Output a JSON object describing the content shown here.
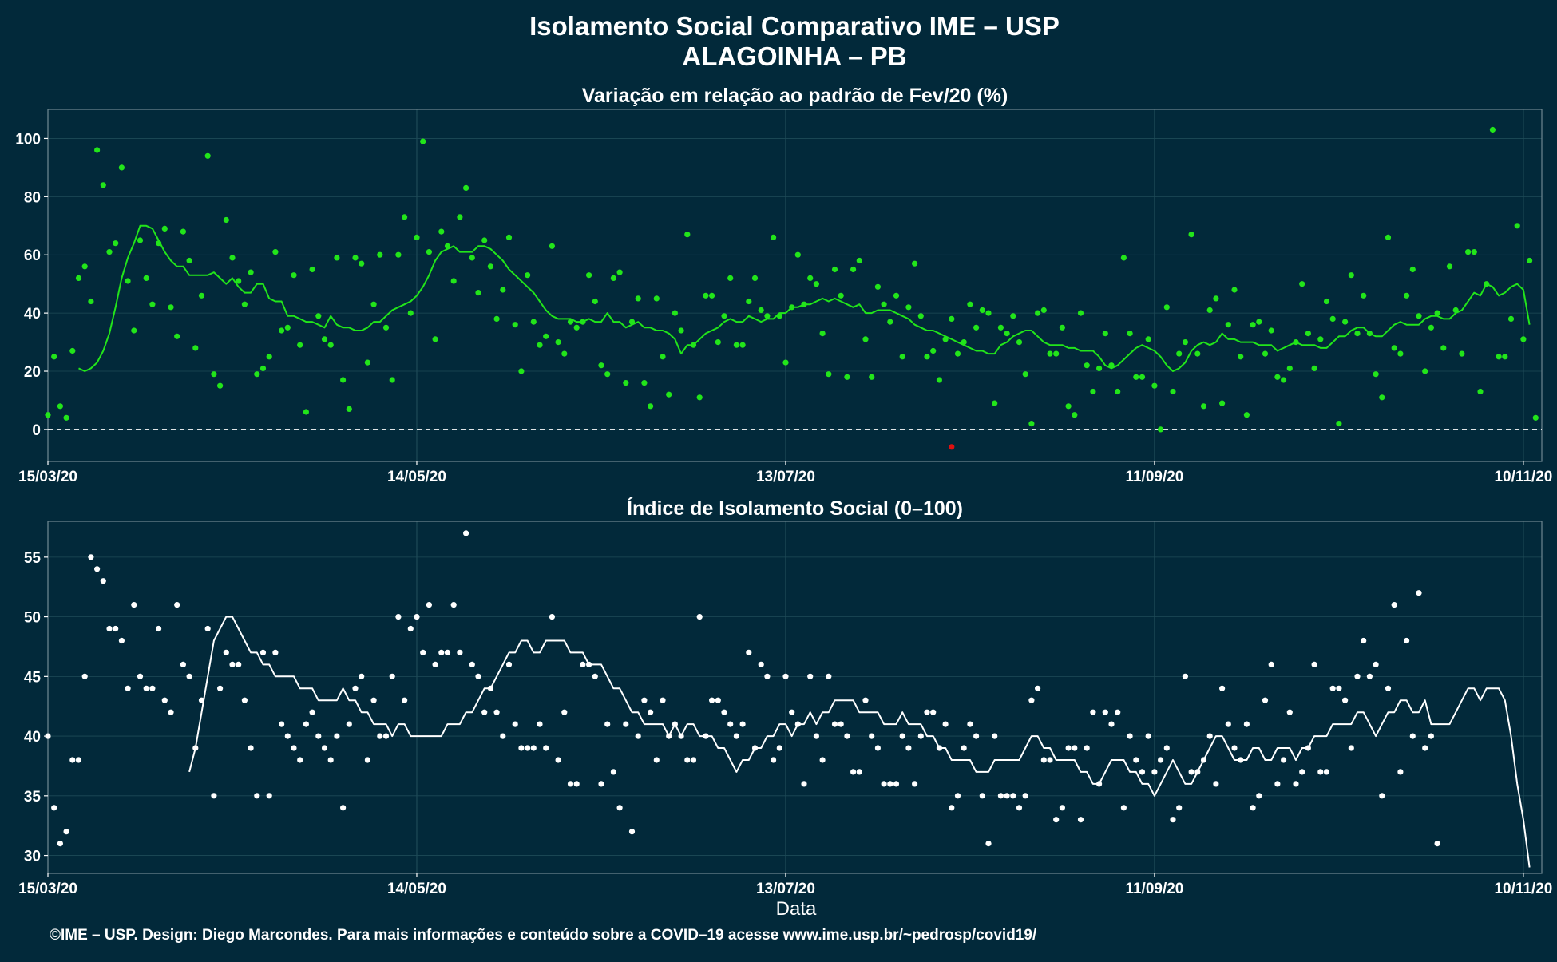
{
  "header": {
    "title_line1": "Isolamento Social Comparativo IME – USP",
    "title_line2": "ALAGOINHA – PB"
  },
  "footer": {
    "xlabel": "Data",
    "credit": "©IME – USP. Design: Diego Marcondes. Para mais informações e conteúdo sobre a COVID–19 acesse www.ime.usp.br/~pedrosp/covid19/"
  },
  "colors": {
    "background": "#02293a",
    "panel_border": "#6f8790",
    "grid": "#1e4a57",
    "green_series": "#22e51a",
    "negative_point": "#e01010",
    "white_series": "#ffffff"
  },
  "chart_data": [
    {
      "type": "scatter",
      "title": "Variação em relação ao padrão de Fev/20 (%)",
      "xlabel": "Data",
      "ylabel": "",
      "x_start": "15/03/20",
      "x_end": "10/11/20",
      "xlim_days": [
        0,
        243
      ],
      "ylim": [
        -11,
        110
      ],
      "yticks": [
        0,
        20,
        40,
        60,
        80,
        100
      ],
      "xticks": [
        {
          "day": 0,
          "label": "15/03/20"
        },
        {
          "day": 60,
          "label": "14/05/20"
        },
        {
          "day": 120,
          "label": "13/07/20"
        },
        {
          "day": 180,
          "label": "11/09/20"
        },
        {
          "day": 240,
          "label": "10/11/20"
        }
      ],
      "reference_line": 0,
      "grid": true,
      "series": [
        {
          "kind": "points",
          "values": [
            5,
            25,
            8,
            4,
            27,
            52,
            56,
            44,
            96,
            84,
            61,
            64,
            90,
            51,
            34,
            65,
            52,
            43,
            64,
            69,
            42,
            32,
            68,
            58,
            28,
            46,
            94,
            19,
            15,
            72,
            59,
            51,
            43,
            54,
            19,
            21,
            25,
            61,
            34,
            35,
            53,
            29,
            6,
            55,
            39,
            31,
            29,
            59,
            17,
            7,
            59,
            57,
            23,
            43,
            60,
            35,
            17,
            60,
            73,
            40,
            66,
            99,
            61,
            31,
            68,
            63,
            51,
            73,
            83,
            59,
            47,
            65,
            56,
            38,
            48,
            66,
            36,
            20,
            53,
            37,
            29,
            32,
            63,
            30,
            26,
            37,
            35,
            37,
            53,
            44,
            22,
            19,
            52,
            54,
            16,
            37,
            45,
            16,
            8,
            45,
            25,
            12,
            40,
            34,
            67,
            29,
            11,
            46,
            46,
            30,
            39,
            52,
            29,
            29,
            44,
            52,
            41,
            39,
            66,
            39,
            23,
            42,
            60,
            43,
            52,
            50,
            33,
            19,
            55,
            46,
            18,
            55,
            58,
            31,
            18,
            49,
            43,
            37,
            46,
            25,
            42,
            57,
            39,
            25,
            27,
            17,
            31,
            38,
            26,
            30,
            43,
            35,
            41,
            40,
            9,
            35,
            33,
            39,
            30,
            19,
            2,
            40,
            41,
            26,
            26,
            35,
            8,
            5,
            40,
            22,
            13,
            21,
            33,
            22,
            13,
            59,
            33,
            18,
            18,
            31,
            15,
            0,
            42,
            13,
            26,
            30,
            67,
            26,
            8,
            41,
            45,
            9,
            36,
            48,
            25,
            5,
            36,
            37,
            26,
            34,
            18,
            17,
            21,
            30,
            50,
            33,
            21,
            31,
            44,
            38,
            2,
            37,
            53,
            33,
            46,
            33,
            19,
            11,
            66,
            28,
            26,
            46,
            55,
            39,
            20,
            35,
            40,
            28,
            56,
            41,
            26,
            61,
            61,
            13,
            50,
            103,
            25,
            25,
            38,
            70,
            31,
            58,
            4
          ],
          "negative_points": [
            {
              "day": 147,
              "value": -6
            }
          ]
        },
        {
          "kind": "moving_average",
          "values": [
            21,
            20,
            21,
            23,
            27,
            33,
            42,
            52,
            59,
            64,
            70,
            70,
            69,
            65,
            61,
            58,
            56,
            56,
            53,
            53,
            53,
            53,
            54,
            52,
            50,
            52,
            49,
            47,
            47,
            50,
            50,
            45,
            44,
            44,
            39,
            39,
            38,
            37,
            37,
            36,
            35,
            39,
            36,
            35,
            35,
            34,
            34,
            35,
            37,
            37,
            39,
            41,
            42,
            43,
            44,
            46,
            49,
            53,
            58,
            61,
            62,
            63,
            61,
            61,
            61,
            63,
            63,
            62,
            60,
            58,
            55,
            53,
            51,
            49,
            47,
            44,
            41,
            39,
            38,
            38,
            38,
            37,
            37,
            38,
            37,
            37,
            40,
            37,
            37,
            35,
            36,
            37,
            35,
            35,
            34,
            34,
            33,
            31,
            26,
            29,
            29,
            31,
            33,
            34,
            35,
            37,
            38,
            37,
            37,
            39,
            38,
            37,
            38,
            38,
            40,
            40,
            42,
            42,
            43,
            43,
            44,
            45,
            44,
            45,
            44,
            43,
            42,
            43,
            40,
            40,
            41,
            41,
            41,
            40,
            39,
            38,
            36,
            35,
            34,
            34,
            33,
            32,
            31,
            30,
            29,
            28,
            27,
            27,
            26,
            26,
            29,
            30,
            32,
            33,
            34,
            34,
            32,
            30,
            29,
            29,
            29,
            28,
            28,
            27,
            27,
            27,
            25,
            22,
            21,
            22,
            24,
            26,
            28,
            29,
            28,
            27,
            25,
            22,
            20,
            21,
            23,
            27,
            29,
            30,
            29,
            30,
            33,
            31,
            31,
            30,
            30,
            30,
            29,
            29,
            29,
            27,
            28,
            29,
            30,
            29,
            29,
            29,
            28,
            28,
            30,
            32,
            32,
            34,
            35,
            35,
            33,
            32,
            32,
            34,
            36,
            37,
            36,
            36,
            36,
            38,
            39,
            39,
            38,
            38,
            40,
            41,
            44,
            47,
            46,
            50,
            49,
            46,
            47,
            49,
            50,
            48,
            36
          ]
        }
      ]
    },
    {
      "type": "scatter",
      "title": "Índice de Isolamento Social (0–100)",
      "xlabel": "Data",
      "ylabel": "",
      "x_start": "15/03/20",
      "x_end": "10/11/20",
      "xlim_days": [
        0,
        243
      ],
      "ylim": [
        28.5,
        58
      ],
      "yticks": [
        30,
        35,
        40,
        45,
        50,
        55
      ],
      "xticks": [
        {
          "day": 0,
          "label": "15/03/20"
        },
        {
          "day": 60,
          "label": "14/05/20"
        },
        {
          "day": 120,
          "label": "13/07/20"
        },
        {
          "day": 180,
          "label": "11/09/20"
        },
        {
          "day": 240,
          "label": "10/11/20"
        }
      ],
      "grid": true,
      "series": [
        {
          "kind": "points",
          "values": [
            40,
            34,
            31,
            32,
            38,
            38,
            45,
            55,
            54,
            53,
            49,
            49,
            48,
            44,
            51,
            45,
            44,
            44,
            49,
            43,
            42,
            51,
            46,
            45,
            39,
            43,
            49,
            35,
            44,
            47,
            46,
            46,
            43,
            39,
            35,
            47,
            35,
            47,
            41,
            40,
            39,
            38,
            41,
            42,
            40,
            39,
            38,
            40,
            34,
            41,
            44,
            45,
            38,
            43,
            40,
            40,
            45,
            50,
            43,
            49,
            50,
            47,
            51,
            46,
            47,
            47,
            51,
            47,
            57,
            46,
            45,
            42,
            44,
            42,
            40,
            46,
            41,
            39,
            39,
            39,
            41,
            39,
            50,
            38,
            42,
            36,
            36,
            46,
            46,
            45,
            36,
            41,
            37,
            34,
            41,
            32,
            40,
            43,
            42,
            38,
            43,
            40,
            41,
            40,
            38,
            38,
            50,
            40,
            43,
            43,
            42,
            41,
            40,
            41,
            47,
            39,
            46,
            45,
            38,
            39,
            45,
            42,
            41,
            36,
            45,
            40,
            38,
            45,
            41,
            41,
            40,
            37,
            37,
            43,
            40,
            39,
            36,
            36,
            36,
            40,
            39,
            36,
            40,
            42,
            42,
            39,
            41,
            34,
            35,
            39,
            41,
            40,
            35,
            31,
            40,
            35,
            35,
            35,
            34,
            35,
            43,
            44,
            38,
            38,
            33,
            34,
            39,
            39,
            33,
            39,
            42,
            36,
            42,
            41,
            42,
            34,
            40,
            38,
            37,
            40,
            37,
            38,
            39,
            33,
            34,
            45,
            37,
            37,
            38,
            40,
            36,
            44,
            41,
            39,
            38,
            41,
            34,
            35,
            43,
            46,
            36,
            38,
            42,
            36,
            37,
            39,
            46,
            37,
            37,
            44,
            44,
            43,
            39,
            45,
            48,
            45,
            46,
            35,
            44,
            51,
            37,
            48,
            40,
            52,
            39,
            40,
            31
          ]
        },
        {
          "kind": "moving_average",
          "values": [
            37,
            39,
            42,
            45,
            48,
            49,
            50,
            50,
            49,
            48,
            47,
            47,
            46,
            46,
            45,
            45,
            45,
            45,
            44,
            44,
            44,
            43,
            43,
            43,
            43,
            44,
            43,
            43,
            42,
            42,
            41,
            41,
            41,
            40,
            41,
            41,
            40,
            40,
            40,
            40,
            40,
            40,
            41,
            41,
            41,
            42,
            42,
            43,
            44,
            44,
            45,
            46,
            47,
            47,
            48,
            48,
            47,
            47,
            48,
            48,
            48,
            48,
            47,
            47,
            47,
            46,
            46,
            46,
            45,
            44,
            44,
            43,
            42,
            42,
            41,
            41,
            41,
            41,
            40,
            41,
            40,
            41,
            41,
            40,
            40,
            40,
            39,
            39,
            38,
            37,
            38,
            38,
            39,
            39,
            40,
            40,
            41,
            41,
            40,
            41,
            41,
            42,
            41,
            42,
            42,
            43,
            43,
            43,
            43,
            42,
            42,
            42,
            42,
            41,
            41,
            41,
            42,
            41,
            41,
            41,
            40,
            40,
            39,
            39,
            38,
            38,
            38,
            38,
            37,
            37,
            37,
            38,
            38,
            38,
            38,
            38,
            39,
            40,
            40,
            39,
            39,
            38,
            38,
            38,
            38,
            37,
            37,
            36,
            36,
            37,
            38,
            38,
            38,
            37,
            37,
            36,
            36,
            35,
            36,
            37,
            38,
            37,
            36,
            36,
            37,
            38,
            39,
            40,
            40,
            39,
            38,
            38,
            38,
            39,
            39,
            38,
            38,
            39,
            39,
            39,
            38,
            39,
            39,
            40,
            40,
            40,
            41,
            41,
            41,
            41,
            42,
            42,
            41,
            40,
            41,
            42,
            42,
            43,
            43,
            42,
            42,
            43,
            41,
            41,
            41,
            41,
            42,
            43,
            44,
            44,
            43,
            44,
            44,
            44,
            43,
            40,
            36,
            33,
            29
          ]
        }
      ]
    }
  ]
}
